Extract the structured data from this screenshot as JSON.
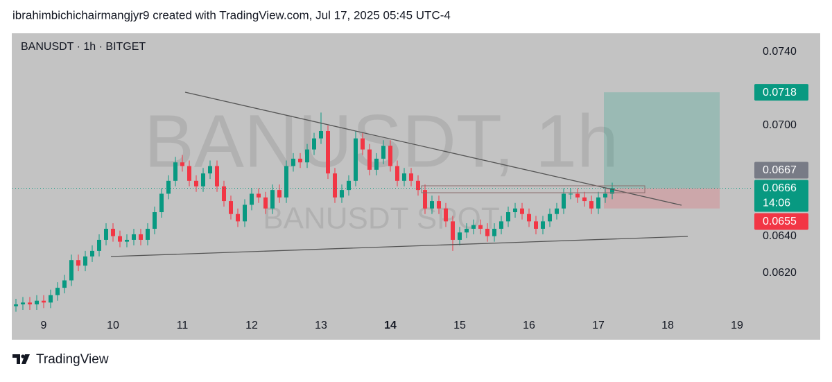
{
  "header": {
    "text": "ibrahimbichichairmangjyr9 created with TradingView.com, Jul 17, 2025 05:45 UTC-4"
  },
  "footer": {
    "brand": "TradingView"
  },
  "chart_data": {
    "type": "candlestick",
    "legend": "BANUSDT · 1h · BITGET",
    "watermark": "BANUSDT, 1h",
    "watermark_sub": "BANUSDT SPOT",
    "up_color": "#089981",
    "down_color": "#f23645",
    "x": [
      8.6,
      8.7,
      8.8,
      8.9,
      9.0,
      9.1,
      9.2,
      9.3,
      9.4,
      9.5,
      9.6,
      9.7,
      9.8,
      9.9,
      10.0,
      10.1,
      10.2,
      10.3,
      10.4,
      10.5,
      10.6,
      10.7,
      10.8,
      10.9,
      11.0,
      11.1,
      11.2,
      11.3,
      11.4,
      11.5,
      11.6,
      11.7,
      11.8,
      11.9,
      12.0,
      12.1,
      12.2,
      12.3,
      12.4,
      12.5,
      12.6,
      12.7,
      12.8,
      12.9,
      13.0,
      13.1,
      13.2,
      13.3,
      13.4,
      13.5,
      13.6,
      13.7,
      13.8,
      13.9,
      14.0,
      14.1,
      14.2,
      14.3,
      14.4,
      14.5,
      14.6,
      14.7,
      14.8,
      14.9,
      15.0,
      15.1,
      15.2,
      15.3,
      15.4,
      15.5,
      15.6,
      15.7,
      15.8,
      15.9,
      16.0,
      16.1,
      16.2,
      16.3,
      16.4,
      16.5,
      16.6,
      16.7,
      16.8,
      16.9,
      17.0,
      17.1,
      17.2
    ],
    "open": [
      0.0602,
      0.0603,
      0.0604,
      0.0603,
      0.0605,
      0.0604,
      0.0608,
      0.0612,
      0.0616,
      0.0627,
      0.0624,
      0.0629,
      0.0632,
      0.0638,
      0.0644,
      0.064,
      0.0637,
      0.0638,
      0.0641,
      0.0638,
      0.0644,
      0.0653,
      0.0663,
      0.067,
      0.068,
      0.0678,
      0.067,
      0.0667,
      0.0674,
      0.0678,
      0.0667,
      0.0659,
      0.0652,
      0.0648,
      0.0657,
      0.0663,
      0.0661,
      0.0655,
      0.0665,
      0.0661,
      0.0678,
      0.0682,
      0.068,
      0.0687,
      0.0693,
      0.0697,
      0.0674,
      0.0661,
      0.0665,
      0.067,
      0.0693,
      0.0687,
      0.0676,
      0.0682,
      0.0689,
      0.0678,
      0.067,
      0.0674,
      0.067,
      0.0665,
      0.0655,
      0.0659,
      0.0655,
      0.0648,
      0.0638,
      0.0642,
      0.0644,
      0.0646,
      0.0644,
      0.064,
      0.0644,
      0.0648,
      0.0653,
      0.0655,
      0.0652,
      0.0648,
      0.0644,
      0.0648,
      0.0652,
      0.0655,
      0.0663,
      0.0663,
      0.0661,
      0.0659,
      0.0655,
      0.0661,
      0.0663
    ],
    "high": [
      0.0606,
      0.0607,
      0.0607,
      0.0608,
      0.0608,
      0.0611,
      0.0615,
      0.0619,
      0.063,
      0.063,
      0.0632,
      0.0635,
      0.0641,
      0.0647,
      0.0647,
      0.0643,
      0.0641,
      0.0644,
      0.0644,
      0.0647,
      0.0656,
      0.0666,
      0.0673,
      0.0683,
      0.0684,
      0.0681,
      0.0673,
      0.0677,
      0.0681,
      0.0681,
      0.067,
      0.0662,
      0.0655,
      0.066,
      0.0666,
      0.0666,
      0.0664,
      0.0668,
      0.0668,
      0.0681,
      0.0685,
      0.0685,
      0.069,
      0.0696,
      0.0707,
      0.07,
      0.0677,
      0.0668,
      0.0673,
      0.0697,
      0.0696,
      0.069,
      0.0685,
      0.0692,
      0.0692,
      0.0681,
      0.0677,
      0.0677,
      0.0673,
      0.0668,
      0.0662,
      0.0662,
      0.0658,
      0.0651,
      0.0645,
      0.0647,
      0.0649,
      0.0649,
      0.0647,
      0.0647,
      0.0651,
      0.0656,
      0.0658,
      0.0658,
      0.0655,
      0.0651,
      0.0651,
      0.0655,
      0.0658,
      0.0666,
      0.0666,
      0.0666,
      0.0664,
      0.0662,
      0.0664,
      0.0666,
      0.0669
    ],
    "low": [
      0.0599,
      0.06,
      0.06,
      0.06,
      0.0601,
      0.0601,
      0.0605,
      0.0609,
      0.0613,
      0.0621,
      0.0621,
      0.0626,
      0.0629,
      0.0635,
      0.0637,
      0.0634,
      0.0634,
      0.0635,
      0.0635,
      0.0635,
      0.0641,
      0.065,
      0.066,
      0.0667,
      0.0675,
      0.0667,
      0.0664,
      0.0664,
      0.0671,
      0.0664,
      0.0656,
      0.0649,
      0.0645,
      0.0645,
      0.0654,
      0.0658,
      0.0652,
      0.0652,
      0.0658,
      0.0658,
      0.0675,
      0.0677,
      0.0677,
      0.0684,
      0.069,
      0.0671,
      0.0658,
      0.0658,
      0.0662,
      0.0667,
      0.0684,
      0.0673,
      0.0673,
      0.0679,
      0.0675,
      0.0667,
      0.0667,
      0.0667,
      0.0662,
      0.0652,
      0.0652,
      0.0652,
      0.0645,
      0.0632,
      0.0635,
      0.0639,
      0.0641,
      0.0641,
      0.0637,
      0.0637,
      0.0641,
      0.0645,
      0.065,
      0.0649,
      0.0645,
      0.0641,
      0.0641,
      0.0645,
      0.0649,
      0.0652,
      0.066,
      0.0658,
      0.0656,
      0.0652,
      0.0652,
      0.0658,
      0.066
    ],
    "close": [
      0.0603,
      0.0604,
      0.0603,
      0.0605,
      0.0604,
      0.0608,
      0.0612,
      0.0616,
      0.0627,
      0.0624,
      0.0629,
      0.0632,
      0.0638,
      0.0644,
      0.064,
      0.0637,
      0.0638,
      0.0641,
      0.0638,
      0.0644,
      0.0653,
      0.0663,
      0.067,
      0.068,
      0.0678,
      0.067,
      0.0667,
      0.0674,
      0.0678,
      0.0667,
      0.0659,
      0.0652,
      0.0648,
      0.0657,
      0.0663,
      0.0661,
      0.0655,
      0.0665,
      0.0661,
      0.0678,
      0.0682,
      0.068,
      0.0687,
      0.0693,
      0.0697,
      0.0674,
      0.0661,
      0.0665,
      0.067,
      0.0693,
      0.0687,
      0.0676,
      0.0682,
      0.0689,
      0.0678,
      0.067,
      0.0674,
      0.067,
      0.0665,
      0.0655,
      0.0659,
      0.0655,
      0.0648,
      0.0638,
      0.0642,
      0.0644,
      0.0646,
      0.0644,
      0.064,
      0.0644,
      0.0648,
      0.0653,
      0.0655,
      0.0652,
      0.0648,
      0.0644,
      0.0648,
      0.0652,
      0.0655,
      0.0663,
      0.0663,
      0.0661,
      0.0659,
      0.0655,
      0.0661,
      0.0663,
      0.0666
    ],
    "xlim": [
      8.55,
      19.22
    ],
    "xticks": [
      9,
      10,
      11,
      12,
      13,
      14,
      15,
      16,
      17,
      18,
      19
    ],
    "bold_xtick": 14,
    "ylim": [
      0.0597,
      0.075
    ],
    "yticks": [
      {
        "value": 0.062,
        "label": "0.0620"
      },
      {
        "value": 0.064,
        "label": "0.0640"
      },
      {
        "value": 0.07,
        "label": "0.0700"
      },
      {
        "value": 0.074,
        "label": "0.0740"
      }
    ],
    "price_labels": [
      {
        "value": 0.0718,
        "color": "#089981"
      },
      {
        "value": 0.0667,
        "color": "#787b86"
      },
      {
        "value": 0.0666,
        "color": "#089981",
        "countdown": "14:06"
      },
      {
        "value": 0.0655,
        "color": "#f23645"
      }
    ]
  }
}
